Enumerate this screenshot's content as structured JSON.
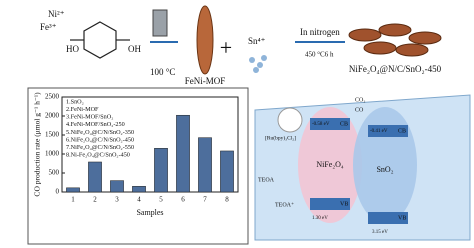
{
  "chart_data": {
    "type": "bar",
    "y_label": "CO production rate (μmol g⁻¹ h⁻¹)",
    "x_label": "Samples",
    "categories": [
      "1",
      "2",
      "3",
      "4",
      "5",
      "6",
      "7",
      "8"
    ],
    "values": [
      110,
      790,
      300,
      150,
      1150,
      2020,
      1430,
      1080
    ],
    "color": "#4d6e9c",
    "ylim": [
      0,
      2500
    ],
    "yticks": [
      0,
      500,
      1000,
      1500,
      2000,
      2500
    ],
    "legend_items": [
      "1.SnO₂",
      "2.FeNi-MOF",
      "3.FeNi-MOF/SnO₂",
      "4.FeNi-MOF/SnO₂-250",
      "5.NiFe₂O₄@C/N/SnO₂-350",
      "6.NiFe₂O₄@C/N/SnO₂-450",
      "7.NiFe₂O₄@C/N/SnO₂-550",
      "8.Ni-Fe₂O₄@C/SnO₂-450"
    ]
  },
  "diagram": {
    "ni": "Ni²⁺",
    "fe": "Fe³⁺",
    "temp1": "100 °C",
    "mof": "FeNi-MOF",
    "sn": "Sn⁴⁺",
    "nitrogen": "In nitrogen",
    "temp2": "450 °C6 h",
    "product": "NiFe₂O₄@N/C/SnO₂-450",
    "co2": "CO₂",
    "co": "CO",
    "ru": "[Ru(bpy)₃Cl₂]",
    "teoa": "TEOA",
    "teoa_plus": "TEOA⁺",
    "cb1_e": "-0.58 eV",
    "cb1": "CB",
    "nife": "NiFe₂O₄",
    "vb1": "VB",
    "vb1_e": "1.30 eV",
    "cb2_e": "-0.41 eV",
    "cb2": "CB",
    "sno2": "SnO₂",
    "vb2": "VB",
    "vb2_e": "3.15 eV"
  }
}
